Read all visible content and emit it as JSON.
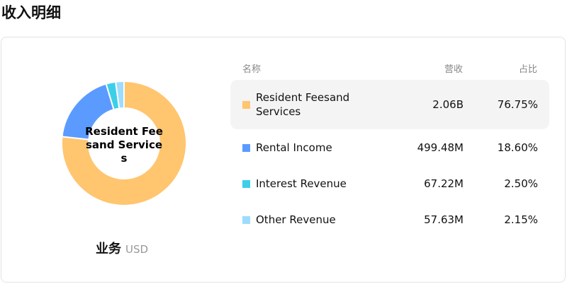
{
  "page_title": "收入明细",
  "chart_center_label": "Resident Feesand Services",
  "business_label": "业务",
  "currency": "USD",
  "table": {
    "headers": {
      "name": "名称",
      "revenue": "营收",
      "share": "占比"
    },
    "rows": [
      {
        "name": "Resident Feesand Services",
        "revenue": "2.06B",
        "share": "76.75%",
        "percent": 76.75,
        "color": "#ffc56f",
        "highlighted": true
      },
      {
        "name": "Rental Income",
        "revenue": "499.48M",
        "share": "18.60%",
        "percent": 18.6,
        "color": "#5b9bff",
        "highlighted": false
      },
      {
        "name": "Interest Revenue",
        "revenue": "67.22M",
        "share": "2.50%",
        "percent": 2.5,
        "color": "#3ecfe8",
        "highlighted": false
      },
      {
        "name": "Other Revenue",
        "revenue": "57.63M",
        "share": "2.15%",
        "percent": 2.15,
        "color": "#9ddcff",
        "highlighted": false
      }
    ]
  }
}
